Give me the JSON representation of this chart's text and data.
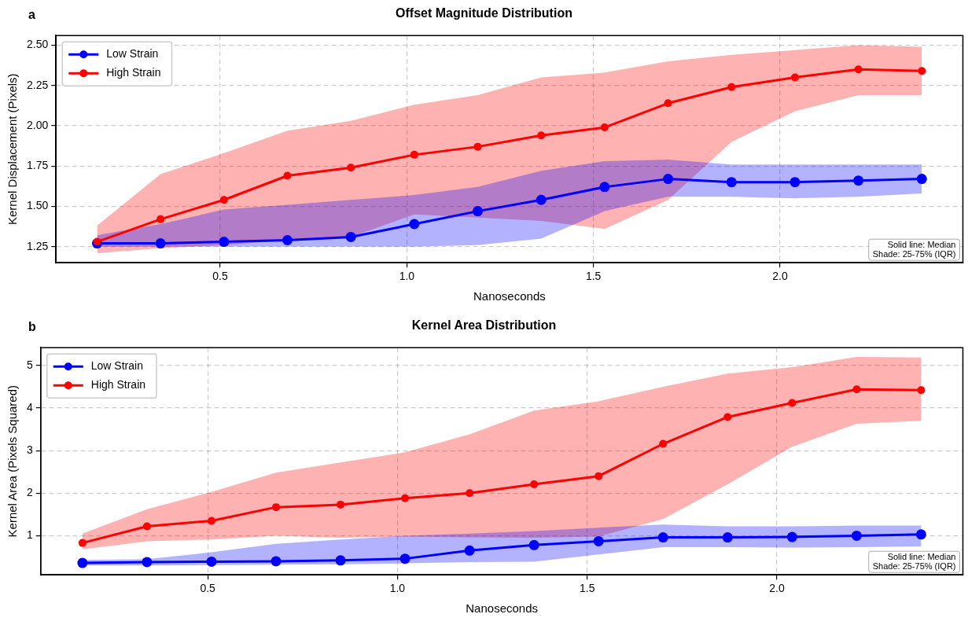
{
  "chart_data": [
    {
      "type": "line",
      "title": "Offset Magnitude Distribution",
      "xlabel": "Nanoseconds",
      "ylabel": "Kernel Displacement (Pixels)",
      "x": [
        0.17,
        0.34,
        0.51,
        0.68,
        0.85,
        1.02,
        1.19,
        1.36,
        1.53,
        1.7,
        1.87,
        2.04,
        2.21,
        2.38
      ],
      "series": [
        {
          "name": "Low Strain",
          "color": "#0000ff",
          "values": [
            1.27,
            1.27,
            1.28,
            1.29,
            1.31,
            1.39,
            1.47,
            1.54,
            1.62,
            1.67,
            1.65,
            1.65,
            1.66,
            1.67
          ],
          "lower": [
            1.25,
            1.25,
            1.25,
            1.25,
            1.25,
            1.25,
            1.26,
            1.3,
            1.47,
            1.56,
            1.56,
            1.55,
            1.56,
            1.58
          ],
          "upper": [
            1.32,
            1.39,
            1.48,
            1.51,
            1.54,
            1.57,
            1.62,
            1.72,
            1.78,
            1.79,
            1.76,
            1.76,
            1.76,
            1.76
          ]
        },
        {
          "name": "High Strain",
          "color": "#ff0000",
          "values": [
            1.28,
            1.42,
            1.54,
            1.69,
            1.74,
            1.82,
            1.87,
            1.94,
            1.99,
            2.14,
            2.24,
            2.3,
            2.35,
            2.34
          ],
          "lower": [
            1.21,
            1.24,
            1.26,
            1.29,
            1.31,
            1.45,
            1.43,
            1.41,
            1.36,
            1.54,
            1.9,
            2.09,
            2.19,
            2.19
          ],
          "upper": [
            1.38,
            1.7,
            1.83,
            1.97,
            2.03,
            2.13,
            2.19,
            2.3,
            2.33,
            2.4,
            2.44,
            2.47,
            2.5,
            2.49
          ]
        }
      ],
      "xlim": [
        0.06,
        2.49
      ],
      "xticks": [
        {
          "value": 0.5,
          "label": "0.5"
        },
        {
          "value": 1,
          "label": "1.0"
        },
        {
          "value": 1.5,
          "label": "1.5"
        },
        {
          "value": 2,
          "label": "2.0"
        }
      ],
      "ylim": [
        1.15,
        2.56
      ],
      "yticks": [
        {
          "value": 1.25,
          "label": "1.25"
        },
        {
          "value": 1.5,
          "label": "1.50"
        },
        {
          "value": 1.75,
          "label": "1.75"
        },
        {
          "value": 2,
          "label": "2.00"
        },
        {
          "value": 2.25,
          "label": "2.25"
        },
        {
          "value": 2.5,
          "label": "2.50"
        }
      ],
      "grid": true,
      "legend": "top left",
      "marker": "circle",
      "line_style": "solid",
      "annotations": [
        "a",
        "Solid line: Median\nShade: 25-75% (IQR)"
      ]
    },
    {
      "type": "line",
      "title": "Kernel Area Distribution",
      "xlabel": "Nanoseconds",
      "ylabel": "Kernel Area (Pixels Squared)",
      "x": [
        0.17,
        0.34,
        0.51,
        0.68,
        0.85,
        1.02,
        1.19,
        1.36,
        1.53,
        1.7,
        1.87,
        2.04,
        2.21,
        2.38
      ],
      "series": [
        {
          "name": "Low Strain",
          "color": "#0000ff",
          "values": [
            0.36,
            0.38,
            0.39,
            0.4,
            0.42,
            0.46,
            0.65,
            0.78,
            0.87,
            0.96,
            0.96,
            0.97,
            1.0,
            1.03
          ],
          "lower": [
            0.3,
            0.3,
            0.31,
            0.32,
            0.33,
            0.35,
            0.38,
            0.39,
            0.56,
            0.73,
            0.73,
            0.72,
            0.73,
            0.75
          ],
          "upper": [
            0.43,
            0.45,
            0.61,
            0.81,
            0.91,
            1.0,
            1.05,
            1.11,
            1.19,
            1.26,
            1.22,
            1.22,
            1.24,
            1.24
          ]
        },
        {
          "name": "High Strain",
          "color": "#ff0000",
          "values": [
            0.83,
            1.22,
            1.35,
            1.67,
            1.73,
            1.88,
            2.0,
            2.21,
            2.4,
            3.16,
            3.79,
            4.12,
            4.44,
            4.42
          ],
          "lower": [
            0.68,
            0.87,
            0.91,
            1.0,
            0.95,
            0.98,
            0.96,
            0.95,
            0.98,
            1.39,
            2.21,
            3.09,
            3.63,
            3.7
          ],
          "upper": [
            1.05,
            1.62,
            2.03,
            2.48,
            2.72,
            2.96,
            3.38,
            3.94,
            4.16,
            4.5,
            4.81,
            4.96,
            5.2,
            5.19
          ]
        }
      ],
      "xlim": [
        0.06,
        2.49
      ],
      "xticks": [
        {
          "value": 0.5,
          "label": "0.5"
        },
        {
          "value": 1,
          "label": "1.0"
        },
        {
          "value": 1.5,
          "label": "1.5"
        },
        {
          "value": 2,
          "label": "2.0"
        }
      ],
      "ylim": [
        0.08,
        5.42
      ],
      "yticks": [
        1,
        2,
        3,
        4,
        5
      ],
      "grid": true,
      "legend": "top left",
      "marker": "circle",
      "line_style": "solid",
      "annotations": [
        "b",
        "Solid line: Median\nShade: 25-75% (IQR)"
      ]
    }
  ]
}
